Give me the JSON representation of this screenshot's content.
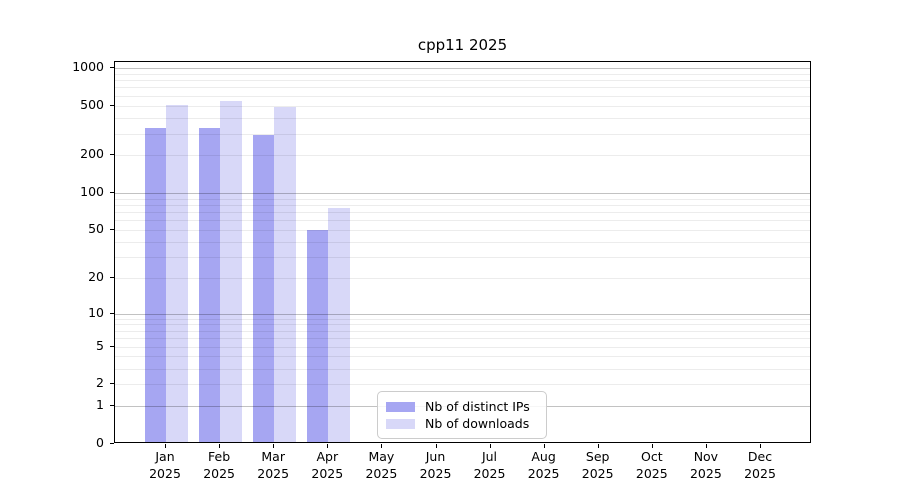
{
  "chart_data": {
    "type": "bar",
    "title": "cpp11 2025",
    "categories": [
      "Jan 2025",
      "Feb 2025",
      "Mar 2025",
      "Apr 2025",
      "May 2025",
      "Jun 2025",
      "Jul 2025",
      "Aug 2025",
      "Sep 2025",
      "Oct 2025",
      "Nov 2025",
      "Dec 2025"
    ],
    "x_tick_lines": [
      [
        "Jan",
        "2025"
      ],
      [
        "Feb",
        "2025"
      ],
      [
        "Mar",
        "2025"
      ],
      [
        "Apr",
        "2025"
      ],
      [
        "May",
        "2025"
      ],
      [
        "Jun",
        "2025"
      ],
      [
        "Jul",
        "2025"
      ],
      [
        "Aug",
        "2025"
      ],
      [
        "Sep",
        "2025"
      ],
      [
        "Oct",
        "2025"
      ],
      [
        "Nov",
        "2025"
      ],
      [
        "Dec",
        "2025"
      ]
    ],
    "series": [
      {
        "name": "Nb of distinct IPs",
        "color": "#a6a6f2",
        "values": [
          320,
          320,
          280,
          48,
          null,
          null,
          null,
          null,
          null,
          null,
          null,
          null
        ]
      },
      {
        "name": "Nb of downloads",
        "color": "#d8d8f8",
        "values": [
          490,
          530,
          475,
          73,
          null,
          null,
          null,
          null,
          null,
          null,
          null,
          null
        ]
      }
    ],
    "y_axis": {
      "scale": "log1p",
      "ticks": [
        0,
        1,
        2,
        5,
        10,
        20,
        50,
        100,
        200,
        500,
        1000
      ],
      "tick_labels": [
        "0",
        "1",
        "2",
        "5",
        "10",
        "20",
        "50",
        "100",
        "200",
        "500",
        "1000"
      ],
      "range": [
        0,
        1118
      ],
      "major_grid_values": [
        1,
        10,
        100,
        1000
      ]
    },
    "legend": {
      "position": "bottom-center"
    },
    "grid": {
      "minor_color": "rgba(0,0,0,0.075)",
      "major_color": "rgba(0,0,0,0.24)"
    },
    "colors": {
      "background": "#ffffff",
      "spine": "#000000",
      "text": "#000000"
    }
  }
}
